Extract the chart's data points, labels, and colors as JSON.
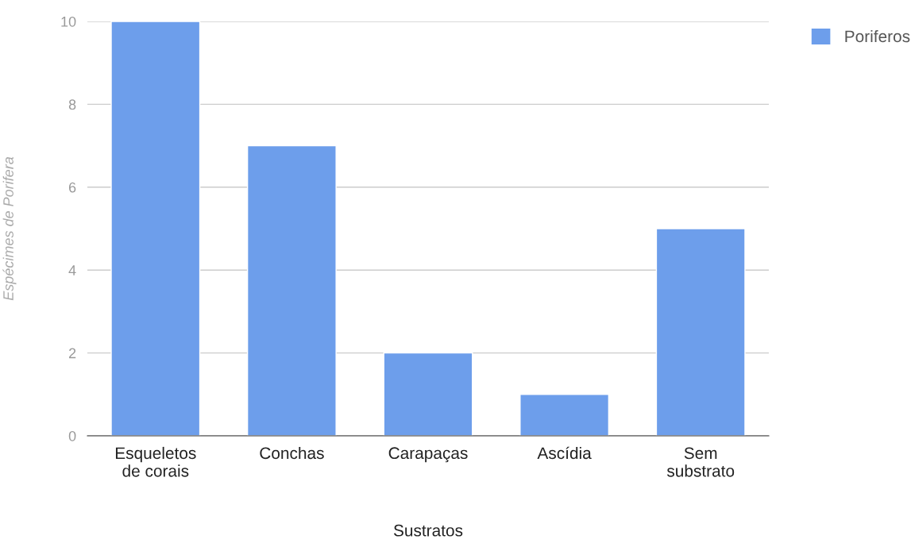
{
  "chart_data": {
    "type": "bar",
    "xlabel": "Sustratos",
    "ylabel": "Espécimes de Porifera",
    "categories": [
      "Esqueletos\nde corais",
      "Conchas",
      "Carapaças",
      "Ascídia",
      "Sem\nsubstrato"
    ],
    "series": [
      {
        "name": "Poriferos",
        "color": "#6d9eeb",
        "values": [
          10,
          7,
          2,
          1,
          5
        ]
      }
    ],
    "ylim": [
      0,
      10
    ],
    "yticks": [
      0,
      2,
      4,
      6,
      8,
      10
    ],
    "grid": "y",
    "legend": "top right"
  }
}
